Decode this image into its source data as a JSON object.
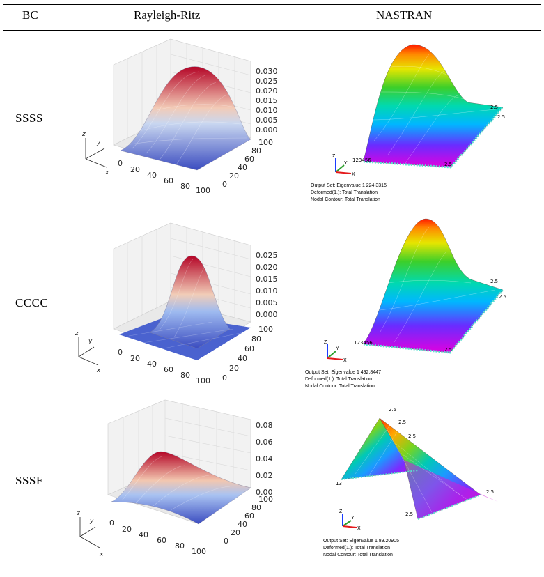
{
  "table": {
    "headers": {
      "bc": "BC",
      "rr": "Rayleigh-Ritz",
      "nastran": "NASTRAN"
    },
    "rows": [
      {
        "bc": "SSSS",
        "rr": {
          "z_ticks": [
            "0.030",
            "0.025",
            "0.020",
            "0.015",
            "0.010",
            "0.005",
            "0.000"
          ],
          "x_ticks": [
            "0",
            "20",
            "40",
            "60",
            "80",
            "100"
          ],
          "y_ticks": [
            "100",
            "80",
            "60",
            "40",
            "20",
            "0"
          ],
          "axis_letters": {
            "x": "x",
            "y": "y",
            "z": "z"
          }
        },
        "nastran": {
          "output_set": "Output Set: Eigenvalue 1 224.3315",
          "deformed": "Deformed(1.): Total Translation",
          "contour": "Nodal Contour: Total Translation",
          "labels": [
            "2.5",
            "2.5",
            "2.5",
            "123456"
          ]
        }
      },
      {
        "bc": "CCCC",
        "rr": {
          "z_ticks": [
            "0.025",
            "0.020",
            "0.015",
            "0.010",
            "0.005",
            "0.000"
          ],
          "x_ticks": [
            "0",
            "20",
            "40",
            "60",
            "80",
            "100"
          ],
          "y_ticks": [
            "100",
            "80",
            "60",
            "40",
            "20",
            "0"
          ],
          "axis_letters": {
            "x": "x",
            "y": "y",
            "z": "z"
          }
        },
        "nastran": {
          "output_set": "Output Set: Eigenvalue 1 492.8447",
          "deformed": "Deformed(1.): Total Translation",
          "contour": "Nodal Contour: Total Translation",
          "labels": [
            "2.5",
            "2.5",
            "2.5",
            "123456"
          ]
        }
      },
      {
        "bc": "SSSF",
        "rr": {
          "z_ticks": [
            "0.08",
            "0.06",
            "0.04",
            "0.02",
            "0.00"
          ],
          "x_ticks": [
            "0",
            "20",
            "40",
            "60",
            "80",
            "100"
          ],
          "y_ticks": [
            "100",
            "80",
            "60",
            "40",
            "20",
            "0"
          ],
          "axis_letters": {
            "x": "x",
            "y": "y",
            "z": "z"
          }
        },
        "nastran": {
          "output_set": "Output Set: Eigenvalue 1 89.20905",
          "deformed": "Deformed(1.): Total Translation",
          "contour": "Nodal Contour: Total Translation",
          "labels": [
            "2.5",
            "2.5",
            "2.5",
            "2.5",
            "2.5",
            "13"
          ]
        }
      }
    ]
  }
}
